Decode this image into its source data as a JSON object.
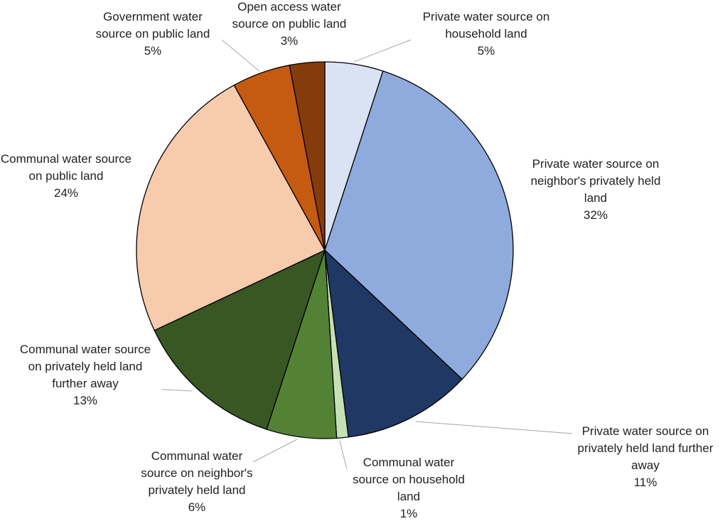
{
  "chart_data": {
    "type": "pie",
    "categories": [
      "Private water source on household land",
      "Private water source on neighbor's privately held land",
      "Private water source on privately held land further away",
      "Communal water source on household land",
      "Communal water source on neighbor's privately held land",
      "Communal water source on privately held land further away",
      "Communal water source on public land",
      "Government water source on public land",
      "Open access water source on public land"
    ],
    "values": [
      5,
      32,
      11,
      1,
      6,
      13,
      24,
      5,
      3
    ],
    "value_labels": [
      "5%",
      "32%",
      "11%",
      "1%",
      "6%",
      "13%",
      "24%",
      "5%",
      "3%"
    ],
    "colors": [
      "#dae3f3",
      "#8faadc",
      "#203864",
      "#c5e0b4",
      "#548235",
      "#385723",
      "#f8cbad",
      "#c55a11",
      "#843c0c"
    ]
  }
}
